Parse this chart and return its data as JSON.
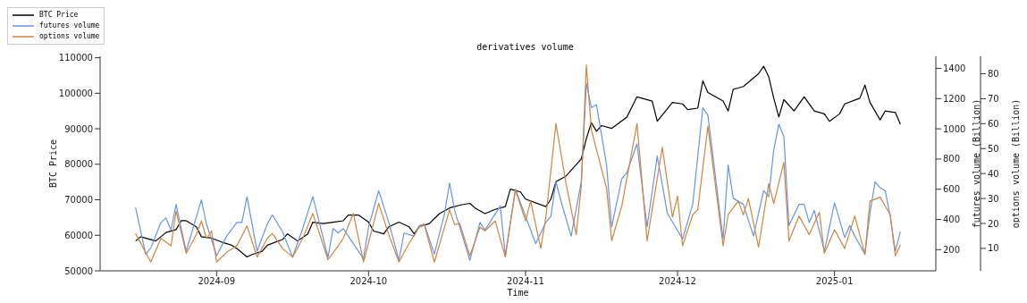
{
  "chart_data": {
    "type": "line",
    "title": "derivatives volume",
    "xlabel": "Time",
    "ylabel": "BTC Price",
    "y2label": "futures volume (Billion)",
    "y3label": "options volume (Billion)",
    "xlim": [
      "2024-08-09",
      "2025-01-21"
    ],
    "xticks": [
      {
        "value": "2024-09-01",
        "label": "2024-09"
      },
      {
        "value": "2024-10-01",
        "label": "2024-10"
      },
      {
        "value": "2024-11-01",
        "label": "2024-11"
      },
      {
        "value": "2024-12-01",
        "label": "2024-12"
      },
      {
        "value": "2025-01-01",
        "label": "2025-01"
      }
    ],
    "ylim": [
      50000,
      110400
    ],
    "yticks": [
      50000,
      60000,
      70000,
      80000,
      90000,
      100000,
      110000
    ],
    "y2lim": [
      60,
      1480
    ],
    "y2ticks": [
      200,
      400,
      600,
      800,
      1000,
      1200,
      1400
    ],
    "y3lim": [
      1,
      87
    ],
    "y3ticks": [
      10,
      20,
      30,
      40,
      50,
      60,
      70,
      80
    ],
    "legend": "top left",
    "marker": "none",
    "line_style": "solid",
    "series": [
      {
        "name": "BTC Price",
        "color": "#000000",
        "x": [
          "2024-08-16",
          "2024-08-17",
          "2024-08-20",
          "2024-08-21",
          "2024-08-22",
          "2024-08-24",
          "2024-08-25",
          "2024-08-26",
          "2024-08-28",
          "2024-08-29",
          "2024-08-31",
          "2024-09-02",
          "2024-09-04",
          "2024-09-05",
          "2024-09-07",
          "2024-09-08",
          "2024-09-10",
          "2024-09-11",
          "2024-09-14",
          "2024-09-15",
          "2024-09-17",
          "2024-09-19",
          "2024-09-20",
          "2024-09-22",
          "2024-09-24",
          "2024-09-26",
          "2024-09-27",
          "2024-09-29",
          "2024-10-01",
          "2024-10-02",
          "2024-10-04",
          "2024-10-05",
          "2024-10-07",
          "2024-10-09",
          "2024-10-10",
          "2024-10-11",
          "2024-10-13",
          "2024-10-15",
          "2024-10-17",
          "2024-10-19",
          "2024-10-21",
          "2024-10-22",
          "2024-10-24",
          "2024-10-26",
          "2024-10-28",
          "2024-10-29",
          "2024-10-31",
          "2024-11-01",
          "2024-11-05",
          "2024-11-06",
          "2024-11-07",
          "2024-11-09",
          "2024-11-12",
          "2024-11-13",
          "2024-11-14",
          "2024-11-15",
          "2024-11-16",
          "2024-11-18",
          "2024-11-21",
          "2024-11-23",
          "2024-11-26",
          "2024-11-27",
          "2024-11-30",
          "2024-12-02",
          "2024-12-03",
          "2024-12-05",
          "2024-12-06",
          "2024-12-07",
          "2024-12-10",
          "2024-12-11",
          "2024-12-12",
          "2024-12-14",
          "2024-12-15",
          "2024-12-17",
          "2024-12-18",
          "2024-12-19",
          "2024-12-20",
          "2024-12-21",
          "2024-12-22",
          "2024-12-24",
          "2024-12-26",
          "2024-12-28",
          "2024-12-30",
          "2024-12-31",
          "2025-01-02",
          "2025-01-03",
          "2025-01-06",
          "2025-01-07",
          "2025-01-08",
          "2025-01-10",
          "2025-01-11",
          "2025-01-13",
          "2025-01-14"
        ],
        "values": [
          58400,
          59600,
          58400,
          59600,
          60800,
          61600,
          64100,
          64100,
          62400,
          59600,
          59200,
          58100,
          57200,
          56300,
          53900,
          54600,
          55500,
          57200,
          58800,
          60400,
          58400,
          60400,
          63700,
          63300,
          63700,
          64100,
          65700,
          65700,
          63700,
          61200,
          60400,
          62400,
          63700,
          62400,
          60400,
          62400,
          63300,
          66100,
          67700,
          68500,
          69000,
          67700,
          66100,
          67300,
          68100,
          73000,
          72200,
          70200,
          68100,
          70200,
          75100,
          76700,
          81500,
          87200,
          91700,
          89300,
          90900,
          90100,
          93300,
          99000,
          97800,
          92100,
          97400,
          97000,
          95400,
          95800,
          103500,
          100200,
          97800,
          95000,
          101100,
          101900,
          103100,
          105500,
          107600,
          104700,
          98600,
          93300,
          98200,
          95000,
          99000,
          95000,
          94200,
          92100,
          94200,
          97000,
          98600,
          102300,
          97400,
          92500,
          95000,
          94600,
          91300
        ]
      },
      {
        "name": "futures volume",
        "color": "#6495ed",
        "axis": "y2",
        "x": [
          "2024-08-16",
          "2024-08-18",
          "2024-08-19",
          "2024-08-21",
          "2024-08-22",
          "2024-08-23",
          "2024-08-24",
          "2024-08-26",
          "2024-08-29",
          "2024-08-30",
          "2024-09-01",
          "2024-09-03",
          "2024-09-05",
          "2024-09-06",
          "2024-09-07",
          "2024-09-09",
          "2024-09-11",
          "2024-09-12",
          "2024-09-14",
          "2024-09-16",
          "2024-09-18",
          "2024-09-20",
          "2024-09-23",
          "2024-09-24",
          "2024-09-25",
          "2024-09-26",
          "2024-09-27",
          "2024-09-30",
          "2024-10-01",
          "2024-10-03",
          "2024-10-05",
          "2024-10-07",
          "2024-10-08",
          "2024-10-10",
          "2024-10-11",
          "2024-10-12",
          "2024-10-14",
          "2024-10-16",
          "2024-10-17",
          "2024-10-18",
          "2024-10-21",
          "2024-10-23",
          "2024-10-24",
          "2024-10-27",
          "2024-10-28",
          "2024-10-30",
          "2024-11-01",
          "2024-11-03",
          "2024-11-05",
          "2024-11-06",
          "2024-11-07",
          "2024-11-08",
          "2024-11-10",
          "2024-11-12",
          "2024-11-13",
          "2024-11-14",
          "2024-11-15",
          "2024-11-17",
          "2024-11-18",
          "2024-11-20",
          "2024-11-21",
          "2024-11-23",
          "2024-11-25",
          "2024-11-27",
          "2024-11-29",
          "2024-12-02",
          "2024-12-04",
          "2024-12-06",
          "2024-12-07",
          "2024-12-10",
          "2024-12-11",
          "2024-12-12",
          "2024-12-14",
          "2024-12-16",
          "2024-12-18",
          "2024-12-19",
          "2024-12-20",
          "2024-12-21",
          "2024-12-22",
          "2024-12-23",
          "2024-12-25",
          "2024-12-26",
          "2024-12-27",
          "2024-12-28",
          "2024-12-30",
          "2025-01-01",
          "2025-01-03",
          "2025-01-04",
          "2025-01-05",
          "2025-01-07",
          "2025-01-08",
          "2025-01-09",
          "2025-01-10",
          "2025-01-11",
          "2025-01-12",
          "2025-01-13",
          "2025-01-14"
        ],
        "values": [
          480,
          170,
          210,
          380,
          410,
          330,
          500,
          190,
          530,
          370,
          160,
          290,
          380,
          380,
          550,
          190,
          370,
          430,
          320,
          150,
          340,
          550,
          150,
          340,
          310,
          340,
          290,
          140,
          350,
          590,
          380,
          130,
          310,
          290,
          360,
          370,
          170,
          440,
          640,
          460,
          130,
          380,
          330,
          490,
          160,
          600,
          420,
          240,
          380,
          420,
          650,
          520,
          290,
          650,
          1300,
          1140,
          1160,
          760,
          350,
          670,
          710,
          900,
          350,
          820,
          440,
          270,
          500,
          1140,
          1090,
          270,
          760,
          540,
          500,
          290,
          590,
          550,
          860,
          1030,
          950,
          360,
          500,
          500,
          380,
          460,
          190,
          510,
          280,
          360,
          290,
          170,
          440,
          650,
          610,
          590,
          420,
          190,
          320
        ]
      },
      {
        "name": "options volume",
        "color": "#d2843c",
        "axis": "y3",
        "x": [
          "2024-08-16",
          "2024-08-19",
          "2024-08-21",
          "2024-08-23",
          "2024-08-24",
          "2024-08-26",
          "2024-08-28",
          "2024-08-29",
          "2024-08-30",
          "2024-08-31",
          "2024-09-01",
          "2024-09-03",
          "2024-09-05",
          "2024-09-07",
          "2024-09-09",
          "2024-09-11",
          "2024-09-12",
          "2024-09-14",
          "2024-09-16",
          "2024-09-18",
          "2024-09-20",
          "2024-09-23",
          "2024-09-25",
          "2024-09-26",
          "2024-09-28",
          "2024-09-30",
          "2024-10-03",
          "2024-10-05",
          "2024-10-07",
          "2024-10-09",
          "2024-10-11",
          "2024-10-12",
          "2024-10-14",
          "2024-10-17",
          "2024-10-18",
          "2024-10-19",
          "2024-10-21",
          "2024-10-23",
          "2024-10-24",
          "2024-10-26",
          "2024-10-28",
          "2024-10-30",
          "2024-11-01",
          "2024-11-02",
          "2024-11-04",
          "2024-11-05",
          "2024-11-07",
          "2024-11-09",
          "2024-11-11",
          "2024-11-12",
          "2024-11-13",
          "2024-11-14",
          "2024-11-17",
          "2024-11-18",
          "2024-11-20",
          "2024-11-23",
          "2024-11-25",
          "2024-11-28",
          "2024-11-30",
          "2024-12-01",
          "2024-12-02",
          "2024-12-04",
          "2024-12-05",
          "2024-12-07",
          "2024-12-10",
          "2024-12-11",
          "2024-12-13",
          "2024-12-14",
          "2024-12-15",
          "2024-12-17",
          "2024-12-19",
          "2024-12-20",
          "2024-12-22",
          "2024-12-23",
          "2024-12-25",
          "2024-12-27",
          "2024-12-29",
          "2024-12-30",
          "2025-01-01",
          "2025-01-03",
          "2025-01-05",
          "2025-01-07",
          "2025-01-08",
          "2025-01-10",
          "2025-01-12",
          "2025-01-13",
          "2025-01-14"
        ],
        "values": [
          16,
          4.5,
          14,
          11,
          25,
          8,
          15.5,
          21,
          14,
          17,
          4.5,
          8.5,
          11,
          19,
          6.5,
          14,
          16,
          10,
          6.5,
          14,
          24,
          5.5,
          11,
          14,
          24,
          4.5,
          28,
          15.5,
          4.5,
          12,
          18.5,
          19.5,
          4.5,
          25.5,
          19.5,
          20,
          7,
          18.5,
          17,
          21,
          6.5,
          33.5,
          21,
          29,
          10,
          22.5,
          60,
          36,
          15.5,
          35,
          83.5,
          57.5,
          34,
          13,
          27,
          60,
          13,
          50.5,
          22.5,
          31,
          11,
          23.5,
          25.5,
          59,
          11,
          23.5,
          29,
          23.5,
          30,
          10.5,
          36,
          28,
          44.5,
          13,
          23,
          15.5,
          24.5,
          8,
          17.5,
          10,
          23,
          7.5,
          29,
          30.5,
          23.5,
          7,
          11.5
        ]
      }
    ]
  }
}
